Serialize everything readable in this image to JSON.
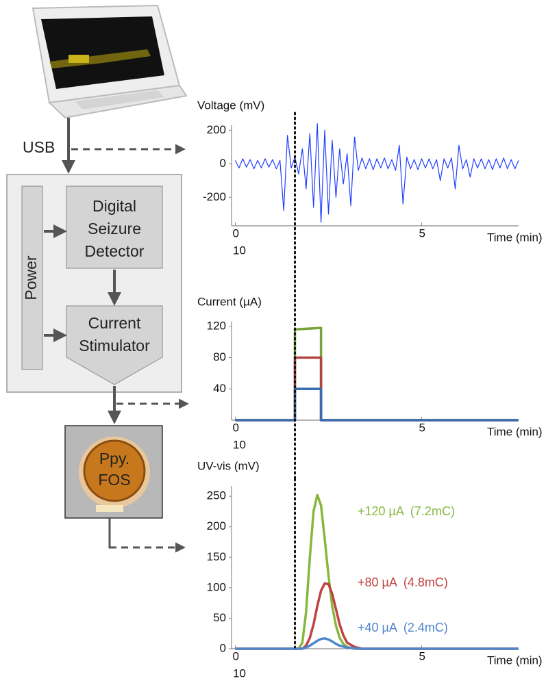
{
  "diagram": {
    "usb": "USB",
    "power": "Power",
    "detector": [
      "Digital",
      "Seizure",
      "Detector"
    ],
    "stimulator": [
      "Current",
      "Stimulator"
    ],
    "sensor": [
      "Ppy.",
      "FOS"
    ]
  },
  "chart_data": [
    {
      "type": "line",
      "y_label": "Voltage (mV)",
      "x_label": "Time (min)",
      "annotations": [
        "10"
      ],
      "xlim": [
        -0.1,
        7.6
      ],
      "xticks": [
        0,
        5
      ],
      "ylim": [
        -370,
        230
      ],
      "yticks": [
        200,
        0,
        -200
      ],
      "vline": 1.6,
      "x": [
        0,
        0.1,
        0.2,
        0.3,
        0.4,
        0.5,
        0.6,
        0.7,
        0.8,
        0.9,
        1,
        1.1,
        1.2,
        1.3,
        1.4,
        1.5,
        1.6,
        1.7,
        1.8,
        1.9,
        2,
        2.1,
        2.2,
        2.3,
        2.4,
        2.5,
        2.6,
        2.7,
        2.8,
        2.9,
        3,
        3.1,
        3.2,
        3.3,
        3.4,
        3.5,
        3.6,
        3.7,
        3.8,
        3.9,
        4,
        4.1,
        4.2,
        4.3,
        4.4,
        4.5,
        4.6,
        4.7,
        4.8,
        4.9,
        5,
        5.1,
        5.2,
        5.3,
        5.4,
        5.5,
        5.6,
        5.7,
        5.8,
        5.9,
        6,
        6.1,
        6.2,
        6.3,
        6.4,
        6.5,
        6.6,
        6.7,
        6.8,
        6.9,
        7,
        7.1,
        7.2,
        7.3,
        7.4,
        7.5,
        7.6
      ],
      "series": [
        {
          "color": "#1f3fff",
          "values": [
            20,
            -25,
            30,
            -20,
            25,
            -30,
            20,
            -25,
            30,
            -20,
            25,
            -30,
            20,
            -280,
            170,
            -25,
            40,
            -60,
            90,
            -150,
            180,
            -260,
            240,
            -350,
            200,
            -300,
            140,
            -200,
            90,
            -120,
            60,
            -250,
            160,
            -40,
            35,
            -30,
            30,
            -35,
            30,
            -25,
            35,
            -30,
            25,
            -40,
            110,
            -240,
            40,
            -30,
            25,
            -35,
            30,
            -25,
            30,
            -30,
            25,
            -100,
            30,
            -25,
            35,
            -150,
            110,
            -30,
            25,
            -80,
            30,
            -25,
            30,
            -30,
            25,
            -35,
            30,
            -25,
            35,
            -30,
            25,
            -30,
            20
          ]
        }
      ]
    },
    {
      "type": "line",
      "y_label": "Current (µA)",
      "x_label": "Time (min)",
      "annotations": [
        "10"
      ],
      "xlim": [
        -0.1,
        7.6
      ],
      "xticks": [
        0,
        5
      ],
      "ylim": [
        0,
        126
      ],
      "yticks": [
        120,
        80,
        40
      ],
      "vline": 1.6,
      "x": [
        0,
        1.6,
        1.6,
        2.3,
        2.3,
        7.6
      ],
      "series": [
        {
          "color": "#76a33a",
          "values": [
            0,
            0,
            116,
            118,
            0,
            0
          ]
        },
        {
          "color": "#b3413e",
          "values": [
            0,
            0,
            80,
            80,
            0,
            0
          ]
        },
        {
          "color": "#3a6cb0",
          "values": [
            0,
            0,
            40,
            40,
            0,
            0
          ]
        }
      ]
    },
    {
      "type": "line",
      "y_label": "UV-vis (mV)",
      "x_label": "Time (min)",
      "annotations": [
        "10"
      ],
      "xlim": [
        -0.1,
        7.6
      ],
      "xticks": [
        0,
        5
      ],
      "ylim": [
        0,
        267
      ],
      "yticks": [
        250,
        200,
        150,
        100,
        50,
        0
      ],
      "vline": 1.6,
      "series": [
        {
          "name": "+120 µA  (7.2mC)",
          "color": "#86b83e",
          "x": [
            0,
            1.7,
            1.8,
            1.9,
            2.0,
            2.1,
            2.2,
            2.3,
            2.4,
            2.5,
            2.6,
            2.7,
            2.8,
            2.9,
            3.0,
            3.2,
            7.6
          ],
          "values": [
            0,
            0,
            10,
            60,
            150,
            225,
            252,
            235,
            180,
            120,
            70,
            38,
            18,
            8,
            3,
            0,
            0
          ]
        },
        {
          "name": "+80 µA  (4.8mC)",
          "color": "#c0423f",
          "x": [
            0,
            1.8,
            1.9,
            2.0,
            2.1,
            2.2,
            2.3,
            2.4,
            2.5,
            2.6,
            2.7,
            2.8,
            2.9,
            3.0,
            3.2,
            3.4,
            7.6
          ],
          "values": [
            0,
            0,
            5,
            18,
            40,
            70,
            95,
            107,
            106,
            90,
            65,
            40,
            22,
            10,
            3,
            0,
            0
          ]
        },
        {
          "name": "+40 µA  (2.4mC)",
          "color": "#4f86cc",
          "x": [
            0,
            1.8,
            1.9,
            2.0,
            2.1,
            2.2,
            2.3,
            2.4,
            2.5,
            2.6,
            2.7,
            2.8,
            3.0,
            3.3,
            7.6
          ],
          "values": [
            0,
            0,
            2,
            5,
            9,
            13,
            16,
            17,
            15,
            12,
            8,
            5,
            2,
            0,
            0
          ]
        }
      ]
    }
  ]
}
